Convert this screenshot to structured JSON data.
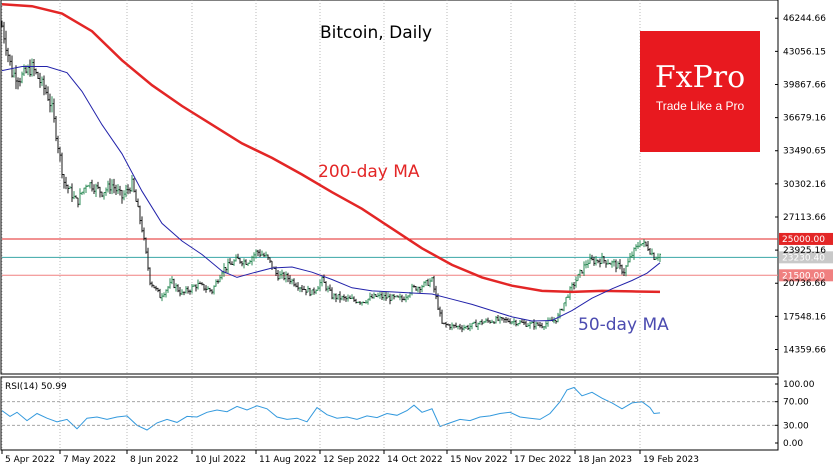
{
  "chart_data": {
    "type": "candlestick",
    "title": "Bitcoin, Daily",
    "y_ticks": [
      "46244.66",
      "43056.15",
      "39867.66",
      "36679.16",
      "33490.65",
      "30302.16",
      "27113.66",
      "23925.16",
      "20736.66",
      "17548.16",
      "14359.66"
    ],
    "x_ticks": [
      "5 Apr 2022",
      "7 May 2022",
      "8 Jun 2022",
      "10 Jul 2022",
      "11 Aug 2022",
      "12 Sep 2022",
      "14 Oct 2022",
      "15 Nov 2022",
      "17 Dec 2022",
      "18 Jan 2023",
      "19 Feb 2023"
    ],
    "ylim": [
      12000,
      48000
    ],
    "horizontal_levels": [
      {
        "value": 25000,
        "label": "25000.00",
        "color": "#e32626"
      },
      {
        "value": 21500,
        "label": "21500.00",
        "color": "#f08080"
      }
    ],
    "current_price": {
      "value": 23230.4,
      "label": "23230.40",
      "color": "#3aa6a6"
    },
    "annotations": [
      {
        "text": "200-day MA",
        "color": "#e32626"
      },
      {
        "text": "50-day MA",
        "color": "#4b4bb0"
      }
    ],
    "price_path": [
      {
        "x": 0,
        "y": 45500
      },
      {
        "x": 10,
        "y": 41000
      },
      {
        "x": 18,
        "y": 40500
      },
      {
        "x": 30,
        "y": 41500
      },
      {
        "x": 45,
        "y": 39000
      },
      {
        "x": 50,
        "y": 37500
      },
      {
        "x": 62,
        "y": 30500
      },
      {
        "x": 75,
        "y": 28500
      },
      {
        "x": 85,
        "y": 30500
      },
      {
        "x": 100,
        "y": 29500
      },
      {
        "x": 110,
        "y": 30200
      },
      {
        "x": 120,
        "y": 29000
      },
      {
        "x": 130,
        "y": 30300
      },
      {
        "x": 140,
        "y": 26000
      },
      {
        "x": 148,
        "y": 21000
      },
      {
        "x": 158,
        "y": 19500
      },
      {
        "x": 170,
        "y": 20800
      },
      {
        "x": 180,
        "y": 19700
      },
      {
        "x": 195,
        "y": 20600
      },
      {
        "x": 210,
        "y": 20000
      },
      {
        "x": 220,
        "y": 22000
      },
      {
        "x": 235,
        "y": 23000
      },
      {
        "x": 245,
        "y": 22800
      },
      {
        "x": 255,
        "y": 23800
      },
      {
        "x": 265,
        "y": 23200
      },
      {
        "x": 275,
        "y": 21500
      },
      {
        "x": 285,
        "y": 21300
      },
      {
        "x": 300,
        "y": 20300
      },
      {
        "x": 310,
        "y": 19800
      },
      {
        "x": 320,
        "y": 21000
      },
      {
        "x": 330,
        "y": 19500
      },
      {
        "x": 345,
        "y": 19200
      },
      {
        "x": 360,
        "y": 19000
      },
      {
        "x": 375,
        "y": 19500
      },
      {
        "x": 390,
        "y": 19300
      },
      {
        "x": 400,
        "y": 19200
      },
      {
        "x": 410,
        "y": 20200
      },
      {
        "x": 420,
        "y": 20500
      },
      {
        "x": 430,
        "y": 21000
      },
      {
        "x": 440,
        "y": 16800
      },
      {
        "x": 450,
        "y": 16600
      },
      {
        "x": 465,
        "y": 16500
      },
      {
        "x": 480,
        "y": 17000
      },
      {
        "x": 495,
        "y": 17200
      },
      {
        "x": 510,
        "y": 17100
      },
      {
        "x": 525,
        "y": 16800
      },
      {
        "x": 540,
        "y": 16700
      },
      {
        "x": 555,
        "y": 17300
      },
      {
        "x": 565,
        "y": 19500
      },
      {
        "x": 575,
        "y": 21200
      },
      {
        "x": 585,
        "y": 22800
      },
      {
        "x": 600,
        "y": 23000
      },
      {
        "x": 612,
        "y": 22600
      },
      {
        "x": 622,
        "y": 21900
      },
      {
        "x": 630,
        "y": 23500
      },
      {
        "x": 638,
        "y": 24700
      },
      {
        "x": 646,
        "y": 24200
      },
      {
        "x": 652,
        "y": 23300
      },
      {
        "x": 658,
        "y": 23500
      }
    ],
    "ma200": [
      {
        "x": 0,
        "y": 47600
      },
      {
        "x": 30,
        "y": 47400
      },
      {
        "x": 60,
        "y": 46700
      },
      {
        "x": 90,
        "y": 45000
      },
      {
        "x": 120,
        "y": 42200
      },
      {
        "x": 150,
        "y": 39800
      },
      {
        "x": 180,
        "y": 37800
      },
      {
        "x": 210,
        "y": 36000
      },
      {
        "x": 240,
        "y": 34200
      },
      {
        "x": 270,
        "y": 32800
      },
      {
        "x": 300,
        "y": 31200
      },
      {
        "x": 330,
        "y": 29500
      },
      {
        "x": 360,
        "y": 27900
      },
      {
        "x": 390,
        "y": 26000
      },
      {
        "x": 420,
        "y": 24100
      },
      {
        "x": 450,
        "y": 22500
      },
      {
        "x": 480,
        "y": 21300
      },
      {
        "x": 510,
        "y": 20500
      },
      {
        "x": 540,
        "y": 20000
      },
      {
        "x": 570,
        "y": 19900
      },
      {
        "x": 600,
        "y": 20000
      },
      {
        "x": 630,
        "y": 19950
      },
      {
        "x": 658,
        "y": 19900
      }
    ],
    "ma50": [
      {
        "x": 0,
        "y": 41200
      },
      {
        "x": 20,
        "y": 41600
      },
      {
        "x": 45,
        "y": 41600
      },
      {
        "x": 65,
        "y": 41000
      },
      {
        "x": 80,
        "y": 39200
      },
      {
        "x": 100,
        "y": 36000
      },
      {
        "x": 120,
        "y": 33200
      },
      {
        "x": 140,
        "y": 29600
      },
      {
        "x": 160,
        "y": 26500
      },
      {
        "x": 180,
        "y": 24800
      },
      {
        "x": 200,
        "y": 23500
      },
      {
        "x": 220,
        "y": 21900
      },
      {
        "x": 235,
        "y": 21300
      },
      {
        "x": 250,
        "y": 21700
      },
      {
        "x": 270,
        "y": 22200
      },
      {
        "x": 290,
        "y": 22300
      },
      {
        "x": 310,
        "y": 21800
      },
      {
        "x": 330,
        "y": 21100
      },
      {
        "x": 350,
        "y": 20300
      },
      {
        "x": 370,
        "y": 20000
      },
      {
        "x": 390,
        "y": 19900
      },
      {
        "x": 410,
        "y": 19800
      },
      {
        "x": 430,
        "y": 19700
      },
      {
        "x": 450,
        "y": 19200
      },
      {
        "x": 470,
        "y": 18700
      },
      {
        "x": 490,
        "y": 18100
      },
      {
        "x": 510,
        "y": 17500
      },
      {
        "x": 530,
        "y": 17100
      },
      {
        "x": 550,
        "y": 17150
      },
      {
        "x": 570,
        "y": 18100
      },
      {
        "x": 590,
        "y": 19300
      },
      {
        "x": 610,
        "y": 20200
      },
      {
        "x": 630,
        "y": 21000
      },
      {
        "x": 645,
        "y": 21700
      },
      {
        "x": 658,
        "y": 22700
      }
    ],
    "rsi": {
      "label": "RSI(14) 50.99",
      "ylim": [
        0,
        100
      ],
      "y_ticks": [
        "100.00",
        "70.00",
        "30.00",
        "0.00"
      ],
      "levels": [
        70,
        30
      ],
      "values": [
        {
          "x": 0,
          "y": 55
        },
        {
          "x": 8,
          "y": 45
        },
        {
          "x": 15,
          "y": 52
        },
        {
          "x": 25,
          "y": 38
        },
        {
          "x": 35,
          "y": 50
        },
        {
          "x": 45,
          "y": 42
        },
        {
          "x": 55,
          "y": 36
        },
        {
          "x": 65,
          "y": 40
        },
        {
          "x": 75,
          "y": 24
        },
        {
          "x": 85,
          "y": 42
        },
        {
          "x": 95,
          "y": 44
        },
        {
          "x": 105,
          "y": 40
        },
        {
          "x": 115,
          "y": 44
        },
        {
          "x": 125,
          "y": 46
        },
        {
          "x": 135,
          "y": 30
        },
        {
          "x": 145,
          "y": 22
        },
        {
          "x": 155,
          "y": 34
        },
        {
          "x": 165,
          "y": 40
        },
        {
          "x": 175,
          "y": 35
        },
        {
          "x": 185,
          "y": 45
        },
        {
          "x": 195,
          "y": 44
        },
        {
          "x": 205,
          "y": 52
        },
        {
          "x": 215,
          "y": 56
        },
        {
          "x": 225,
          "y": 53
        },
        {
          "x": 235,
          "y": 62
        },
        {
          "x": 245,
          "y": 56
        },
        {
          "x": 255,
          "y": 63
        },
        {
          "x": 265,
          "y": 58
        },
        {
          "x": 275,
          "y": 44
        },
        {
          "x": 285,
          "y": 40
        },
        {
          "x": 295,
          "y": 42
        },
        {
          "x": 305,
          "y": 36
        },
        {
          "x": 315,
          "y": 60
        },
        {
          "x": 325,
          "y": 48
        },
        {
          "x": 335,
          "y": 42
        },
        {
          "x": 345,
          "y": 44
        },
        {
          "x": 355,
          "y": 40
        },
        {
          "x": 365,
          "y": 46
        },
        {
          "x": 375,
          "y": 43
        },
        {
          "x": 385,
          "y": 50
        },
        {
          "x": 395,
          "y": 47
        },
        {
          "x": 405,
          "y": 55
        },
        {
          "x": 412,
          "y": 64
        },
        {
          "x": 420,
          "y": 52
        },
        {
          "x": 430,
          "y": 58
        },
        {
          "x": 438,
          "y": 28
        },
        {
          "x": 448,
          "y": 34
        },
        {
          "x": 458,
          "y": 40
        },
        {
          "x": 468,
          "y": 38
        },
        {
          "x": 478,
          "y": 44
        },
        {
          "x": 488,
          "y": 46
        },
        {
          "x": 498,
          "y": 50
        },
        {
          "x": 508,
          "y": 52
        },
        {
          "x": 518,
          "y": 44
        },
        {
          "x": 528,
          "y": 42
        },
        {
          "x": 538,
          "y": 40
        },
        {
          "x": 548,
          "y": 50
        },
        {
          "x": 558,
          "y": 70
        },
        {
          "x": 565,
          "y": 90
        },
        {
          "x": 572,
          "y": 94
        },
        {
          "x": 580,
          "y": 80
        },
        {
          "x": 590,
          "y": 86
        },
        {
          "x": 600,
          "y": 76
        },
        {
          "x": 610,
          "y": 68
        },
        {
          "x": 620,
          "y": 58
        },
        {
          "x": 630,
          "y": 68
        },
        {
          "x": 640,
          "y": 70
        },
        {
          "x": 648,
          "y": 60
        },
        {
          "x": 652,
          "y": 50
        },
        {
          "x": 658,
          "y": 51
        }
      ]
    }
  },
  "logo": {
    "brand": "FxPro",
    "tagline": "Trade Like a Pro"
  }
}
